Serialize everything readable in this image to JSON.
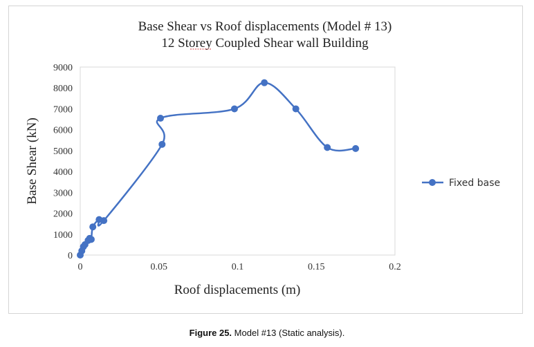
{
  "chart_data": {
    "type": "line",
    "title": "Base Shear vs Roof displacements (Model # 13)",
    "subtitle": "12 Storey Coupled Shear wall Building",
    "xlabel": "Roof displacements (m)",
    "ylabel": "Base Shear (kN)",
    "xlim": [
      0,
      0.2
    ],
    "ylim": [
      0,
      9000
    ],
    "xticks": [
      0,
      0.05,
      0.1,
      0.15,
      0.2
    ],
    "xtick_labels": [
      "0",
      "0.05",
      "0.1",
      "0.15",
      "0.2"
    ],
    "yticks": [
      0,
      1000,
      2000,
      3000,
      4000,
      5000,
      6000,
      7000,
      8000,
      9000
    ],
    "ytick_labels": [
      "0",
      "1000",
      "2000",
      "3000",
      "4000",
      "5000",
      "6000",
      "7000",
      "8000",
      "9000"
    ],
    "grid": false,
    "legend_position": "right",
    "series": [
      {
        "name": "Fixed base",
        "color": "#4472c4",
        "x": [
          0,
          0.001,
          0.002,
          0.003,
          0.005,
          0.006,
          0.007,
          0.008,
          0.012,
          0.015,
          0.052,
          0.051,
          0.098,
          0.117,
          0.137,
          0.157,
          0.175
        ],
        "y": [
          0,
          200,
          400,
          500,
          700,
          800,
          750,
          1350,
          1700,
          1650,
          5300,
          6550,
          7000,
          8250,
          7000,
          5150,
          5100
        ]
      }
    ]
  },
  "caption": {
    "label": "Figure 25.",
    "text": " Model #13 (Static analysis)."
  }
}
